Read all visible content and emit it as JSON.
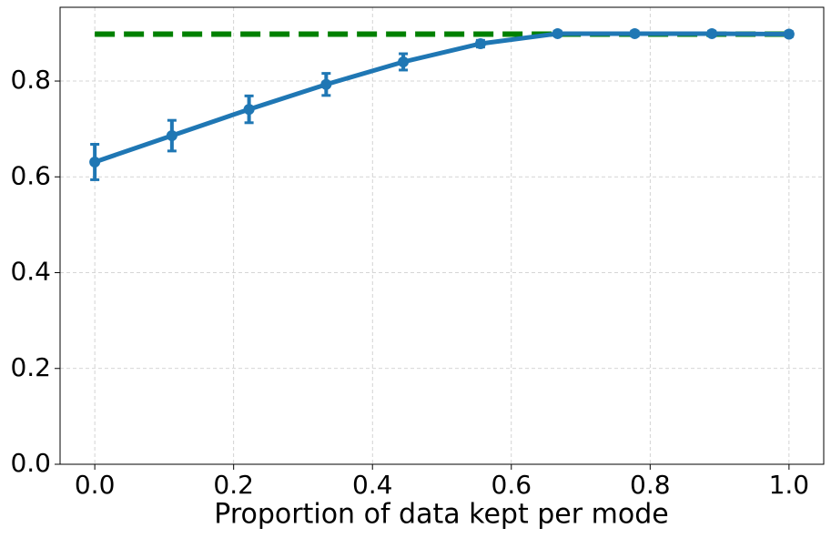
{
  "chart_data": {
    "type": "line",
    "xlabel": "Proportion of data kept per mode",
    "xlim": [
      -0.05,
      1.05
    ],
    "ylim": [
      0,
      0.954
    ],
    "xticks": [
      {
        "value": 0,
        "label": "0.0"
      },
      0.2,
      0.4,
      0.6,
      0.8,
      {
        "value": 1,
        "label": "1.0"
      }
    ],
    "yticks": [
      {
        "value": 0,
        "label": "0.0"
      },
      0.2,
      0.4,
      0.6,
      0.8
    ],
    "grid": true,
    "series": [
      {
        "color": "#008000",
        "dashed": true,
        "x": [
          0,
          1
        ],
        "values": [
          0.898,
          0.898
        ]
      },
      {
        "color": "#1f77b4",
        "dashed": false,
        "x": [
          0,
          0.1111,
          0.2222,
          0.3333,
          0.4444,
          0.5556,
          0.6667,
          0.7778,
          0.8889,
          1
        ],
        "values": [
          0.631,
          0.686,
          0.741,
          0.793,
          0.84,
          0.878,
          0.899,
          0.899,
          0.899,
          0.898
        ],
        "errors": [
          0.037,
          0.032,
          0.028,
          0.023,
          0.017,
          0.007,
          0.005,
          0.005,
          0.005,
          0.005
        ]
      }
    ]
  }
}
